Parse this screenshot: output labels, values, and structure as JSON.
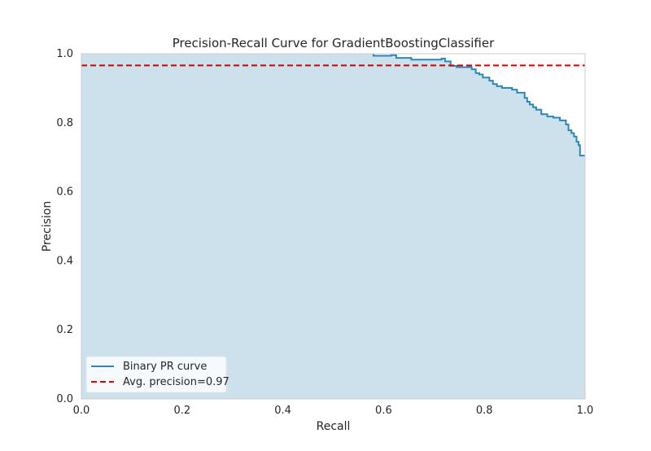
{
  "chart_data": {
    "type": "line",
    "title": "Precision-Recall Curve for GradientBoostingClassifier",
    "xlabel": "Recall",
    "ylabel": "Precision",
    "xlim": [
      0.0,
      1.0
    ],
    "ylim": [
      0.0,
      1.0
    ],
    "xticks": [
      "0.0",
      "0.2",
      "0.4",
      "0.6",
      "0.8",
      "1.0"
    ],
    "yticks": [
      "0.0",
      "0.2",
      "0.4",
      "0.6",
      "0.8",
      "1.0"
    ],
    "grid": false,
    "legend_position": "lower-left",
    "series": [
      {
        "name": "Binary PR curve",
        "style": "step",
        "fill_under": true,
        "color": "#2e86b7",
        "fill_color": "#cde1ec",
        "points": [
          [
            0.0,
            1.0
          ],
          [
            0.58,
            1.0
          ],
          [
            0.58,
            0.994
          ],
          [
            0.615,
            0.994
          ],
          [
            0.615,
            0.996
          ],
          [
            0.625,
            0.996
          ],
          [
            0.625,
            0.988
          ],
          [
            0.655,
            0.988
          ],
          [
            0.655,
            0.983
          ],
          [
            0.715,
            0.983
          ],
          [
            0.715,
            0.986
          ],
          [
            0.722,
            0.986
          ],
          [
            0.722,
            0.978
          ],
          [
            0.733,
            0.978
          ],
          [
            0.733,
            0.965
          ],
          [
            0.745,
            0.965
          ],
          [
            0.745,
            0.961
          ],
          [
            0.775,
            0.961
          ],
          [
            0.775,
            0.955
          ],
          [
            0.783,
            0.955
          ],
          [
            0.783,
            0.944
          ],
          [
            0.79,
            0.944
          ],
          [
            0.79,
            0.94
          ],
          [
            0.797,
            0.94
          ],
          [
            0.797,
            0.931
          ],
          [
            0.81,
            0.931
          ],
          [
            0.81,
            0.922
          ],
          [
            0.817,
            0.922
          ],
          [
            0.817,
            0.912
          ],
          [
            0.825,
            0.912
          ],
          [
            0.825,
            0.906
          ],
          [
            0.835,
            0.906
          ],
          [
            0.835,
            0.901
          ],
          [
            0.855,
            0.901
          ],
          [
            0.855,
            0.896
          ],
          [
            0.865,
            0.896
          ],
          [
            0.865,
            0.887
          ],
          [
            0.88,
            0.887
          ],
          [
            0.88,
            0.872
          ],
          [
            0.885,
            0.872
          ],
          [
            0.885,
            0.861
          ],
          [
            0.89,
            0.861
          ],
          [
            0.89,
            0.853
          ],
          [
            0.897,
            0.853
          ],
          [
            0.897,
            0.845
          ],
          [
            0.903,
            0.845
          ],
          [
            0.903,
            0.838
          ],
          [
            0.913,
            0.838
          ],
          [
            0.913,
            0.825
          ],
          [
            0.925,
            0.825
          ],
          [
            0.925,
            0.818
          ],
          [
            0.937,
            0.818
          ],
          [
            0.937,
            0.815
          ],
          [
            0.95,
            0.815
          ],
          [
            0.95,
            0.807
          ],
          [
            0.962,
            0.807
          ],
          [
            0.962,
            0.795
          ],
          [
            0.967,
            0.795
          ],
          [
            0.967,
            0.778
          ],
          [
            0.973,
            0.778
          ],
          [
            0.973,
            0.77
          ],
          [
            0.978,
            0.77
          ],
          [
            0.978,
            0.76
          ],
          [
            0.983,
            0.76
          ],
          [
            0.983,
            0.745
          ],
          [
            0.987,
            0.745
          ],
          [
            0.987,
            0.735
          ],
          [
            0.99,
            0.735
          ],
          [
            0.99,
            0.705
          ],
          [
            1.0,
            0.705
          ]
        ]
      },
      {
        "name": "Avg. precision=0.97",
        "style": "dashed",
        "color": "#cc0000",
        "y": 0.966
      }
    ]
  }
}
